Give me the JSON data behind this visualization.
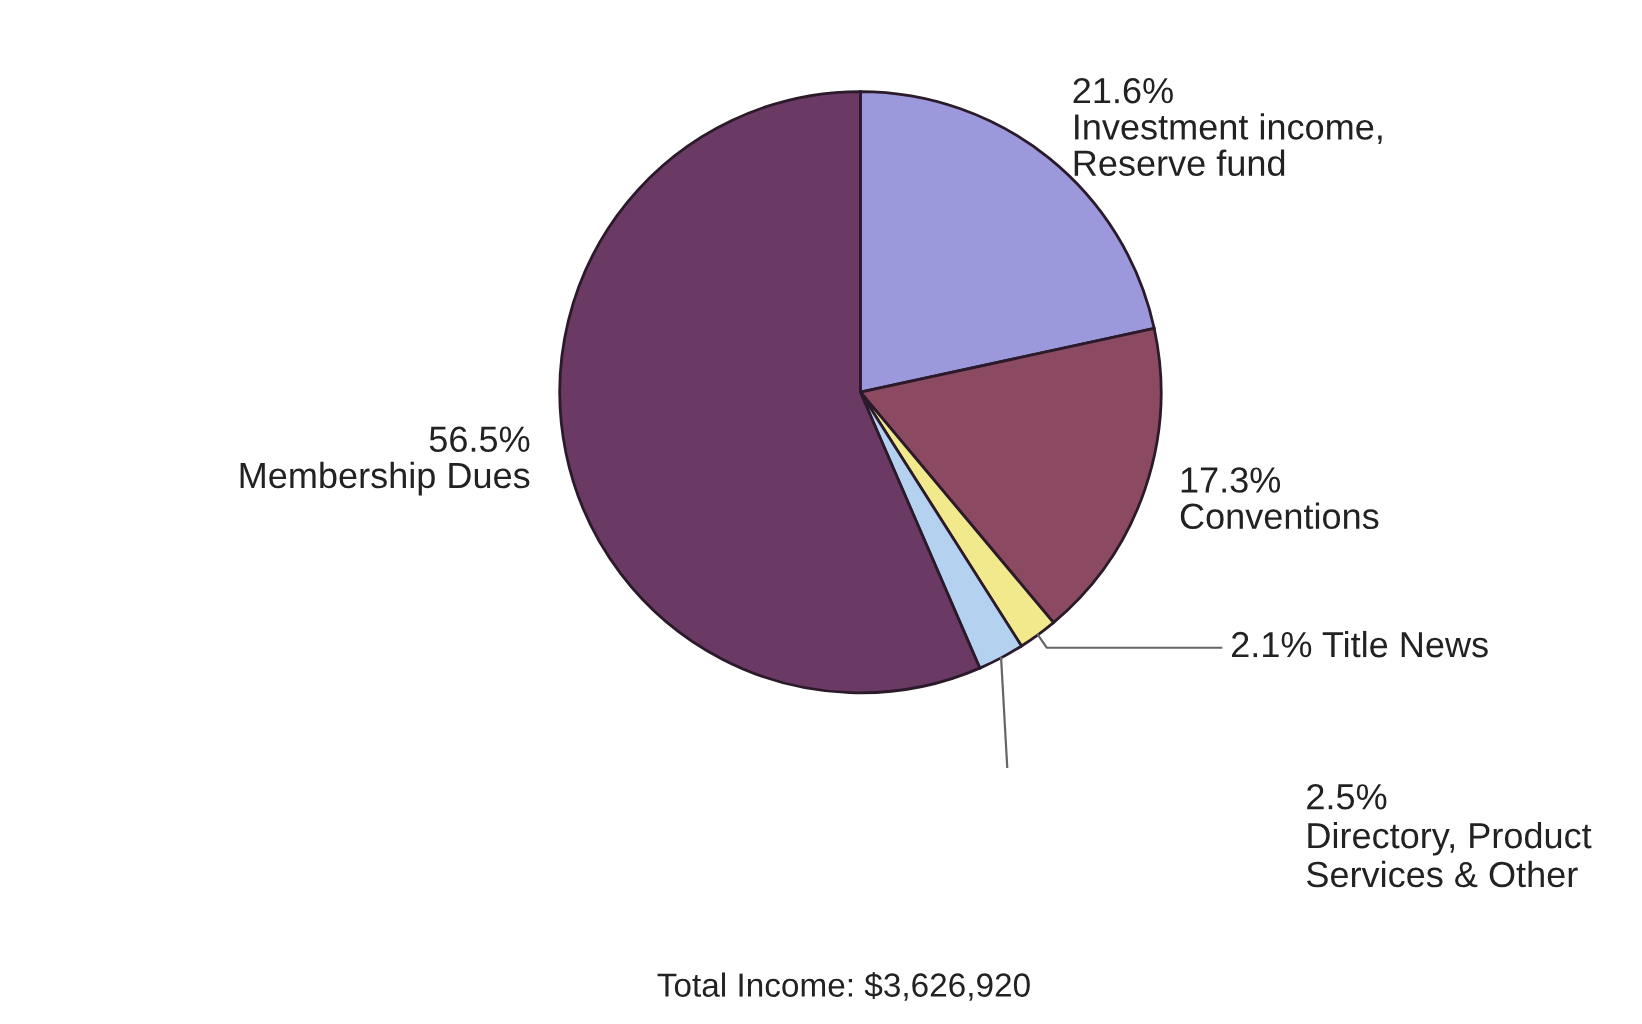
{
  "chart_data": {
    "type": "pie",
    "categories": [
      "Investment income,\nReserve fund",
      "Conventions",
      "Title News",
      "Directory, Product\nServices & Other",
      "Membership Dues"
    ],
    "values": [
      21.6,
      17.3,
      2.1,
      2.5,
      56.5
    ],
    "value_labels": [
      "21.6%",
      "17.3%",
      "2.1%",
      "2.5%",
      "56.5%"
    ],
    "colors": [
      "#9b98dc",
      "#8c4a62",
      "#f2e88c",
      "#b4d2f0",
      "#6a3a64"
    ],
    "annotations": [
      "Total Income: $3,626,920"
    ]
  }
}
